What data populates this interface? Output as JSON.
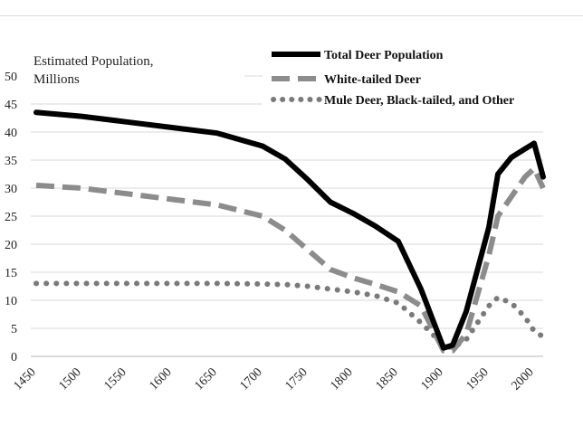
{
  "chart_data": {
    "type": "line",
    "title": "",
    "ylabel_lines": [
      "Estimated Population,",
      "Millions"
    ],
    "xlabel": "",
    "ylim": [
      0,
      50
    ],
    "xlim": [
      1450,
      2000
    ],
    "y_ticks": [
      "0",
      "5",
      "10",
      "15",
      "20",
      "25",
      "30",
      "35",
      "40",
      "45",
      "50"
    ],
    "x_ticks": [
      "1450",
      "1500",
      "1550",
      "1600",
      "1650",
      "1700",
      "1750",
      "1800",
      "1850",
      "1900",
      "1950",
      "2000"
    ],
    "grid": "horizontal",
    "legend_position": "top-right",
    "series": [
      {
        "name": "Total Deer Population",
        "style": "solid",
        "color": "#000000",
        "x": [
          1450,
          1500,
          1550,
          1600,
          1650,
          1700,
          1725,
          1750,
          1775,
          1800,
          1825,
          1850,
          1875,
          1900,
          1910,
          1925,
          1950,
          1960,
          1975,
          1990,
          2000,
          2010
        ],
        "values": [
          43.5,
          42.8,
          41.8,
          40.8,
          39.8,
          37.5,
          35.2,
          31.5,
          27.5,
          25.5,
          23.2,
          20.5,
          12,
          1.5,
          2,
          8,
          23,
          32.5,
          35.5,
          37,
          38,
          32
        ]
      },
      {
        "name": "White-tailed Deer",
        "style": "dashed",
        "color": "#8c8c8c",
        "x": [
          1450,
          1500,
          1550,
          1600,
          1650,
          1700,
          1725,
          1750,
          1775,
          1800,
          1825,
          1850,
          1875,
          1900,
          1910,
          1925,
          1950,
          1960,
          1975,
          1990,
          2000,
          2010
        ],
        "values": [
          30.5,
          30,
          29,
          28,
          27,
          25,
          22.5,
          19,
          15.5,
          14,
          12.8,
          11.5,
          9,
          1,
          1,
          4,
          18,
          25,
          28.5,
          32,
          33.5,
          30
        ]
      },
      {
        "name": "Mule Deer, Black-tailed, and Other",
        "style": "dotted",
        "color": "#7a7a7a",
        "x": [
          1450,
          1500,
          1550,
          1600,
          1650,
          1700,
          1725,
          1750,
          1775,
          1800,
          1825,
          1850,
          1875,
          1900,
          1910,
          1925,
          1950,
          1960,
          1975,
          1990,
          2000,
          2010
        ],
        "values": [
          13,
          13,
          13,
          13,
          13,
          12.9,
          12.8,
          12.5,
          12,
          11.5,
          10.8,
          9.5,
          6,
          2,
          1.5,
          3,
          9,
          10.5,
          9.5,
          7,
          4.5,
          3.5
        ]
      }
    ]
  }
}
